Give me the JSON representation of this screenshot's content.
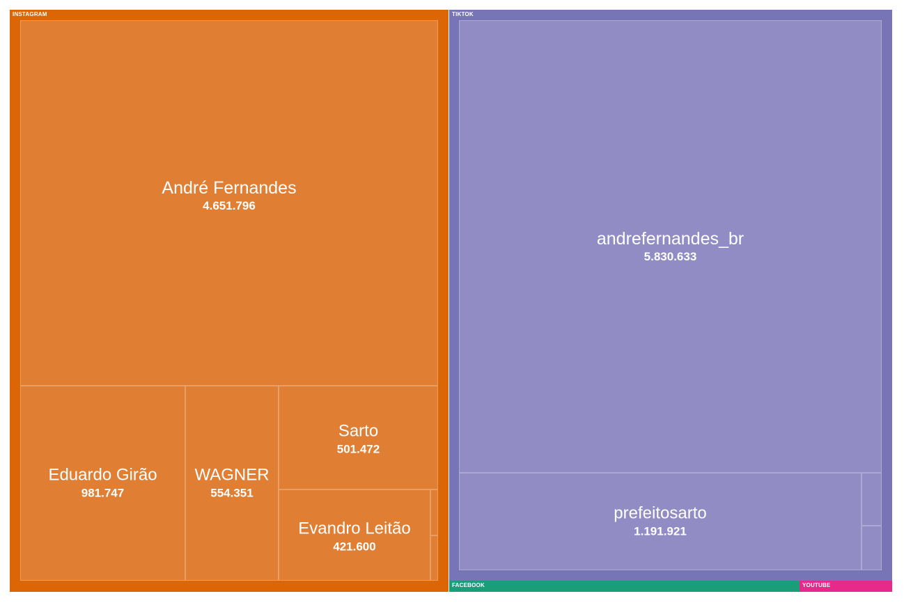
{
  "chart_data": {
    "type": "treemap",
    "groups": [
      {
        "name": "INSTAGRAM",
        "color": "#dc6505",
        "tile_color": "#e07f33",
        "children": [
          {
            "name": "André Fernandes",
            "value": 4651796,
            "label": "4.651.796"
          },
          {
            "name": "Eduardo Girão",
            "value": 981747,
            "label": "981.747"
          },
          {
            "name": "WAGNER",
            "value": 554351,
            "label": "554.351"
          },
          {
            "name": "Sarto",
            "value": 501472,
            "label": "501.472"
          },
          {
            "name": "Evandro Leitão",
            "value": 421600,
            "label": "421.600"
          },
          {
            "name": "",
            "value": 35000,
            "label": ""
          },
          {
            "name": "",
            "value": 30000,
            "label": ""
          }
        ]
      },
      {
        "name": "TIKTOK",
        "color": "#7875b7",
        "tile_color": "#918cc3",
        "children": [
          {
            "name": "andrefernandes_br",
            "value": 5830633,
            "label": "5.830.633"
          },
          {
            "name": "prefeitosarto",
            "value": 1191921,
            "label": "1.191.921"
          },
          {
            "name": "",
            "value": 27000,
            "label": ""
          },
          {
            "name": "",
            "value": 27000,
            "label": ""
          }
        ]
      },
      {
        "name": "FACEBOOK",
        "color": "#1a9e77",
        "tile_color": "#1a9e77",
        "children": []
      },
      {
        "name": "YOUTUBE",
        "color": "#e7298a",
        "tile_color": "#e7298a",
        "children": []
      }
    ]
  }
}
